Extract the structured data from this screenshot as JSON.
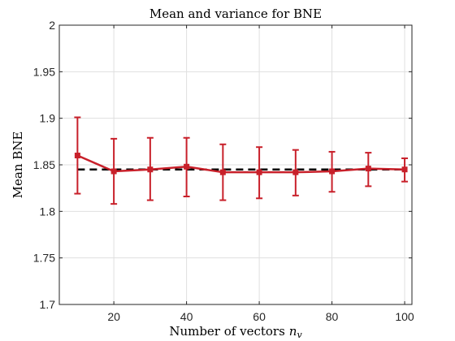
{
  "chart_data": {
    "type": "line",
    "title": "Mean and variance for BNE",
    "xlabel": "Number of vectors",
    "xlabel_symbol": "n",
    "xlabel_subscript": "v",
    "ylabel": "Mean BNE",
    "xlim": [
      5,
      102
    ],
    "ylim": [
      1.7,
      2.0
    ],
    "xticks": [
      20,
      40,
      60,
      80,
      100
    ],
    "yticks": [
      1.7,
      1.75,
      1.8,
      1.85,
      1.9,
      1.95,
      2.0
    ],
    "xtick_labels": [
      "20",
      "40",
      "60",
      "80",
      "100"
    ],
    "ytick_labels": [
      "1.7",
      "1.75",
      "1.8",
      "1.85",
      "1.9",
      "1.95",
      "2"
    ],
    "grid": true,
    "series": [
      {
        "style": "solid line with error bars",
        "color": "#c8202a",
        "x": [
          10,
          20,
          30,
          40,
          50,
          60,
          70,
          80,
          90,
          100
        ],
        "y": [
          1.86,
          1.843,
          1.845,
          1.848,
          1.842,
          1.842,
          1.842,
          1.843,
          1.846,
          1.845
        ],
        "upper": [
          1.901,
          1.878,
          1.879,
          1.879,
          1.872,
          1.869,
          1.866,
          1.864,
          1.863,
          1.857
        ],
        "lower": [
          1.819,
          1.808,
          1.812,
          1.816,
          1.812,
          1.814,
          1.817,
          1.821,
          1.827,
          1.832
        ]
      },
      {
        "style": "dashed line",
        "color": "#000000",
        "x": [
          10,
          100
        ],
        "y": [
          1.845,
          1.845
        ]
      }
    ]
  }
}
